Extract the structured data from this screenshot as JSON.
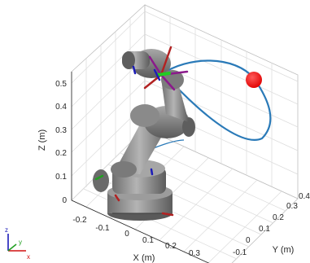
{
  "figure": {
    "axis_labels": {
      "x": "X (m)",
      "y": "Y (m)",
      "z": "Z (m)"
    },
    "z_ticks": [
      "0",
      "0.1",
      "0.2",
      "0.3",
      "0.4",
      "0.5"
    ],
    "x_ticks": [
      "-0.2",
      "-0.1",
      "0",
      "0.1",
      "0.2",
      "0.3"
    ],
    "y_ticks": [
      "-0.1",
      "0",
      "0.1",
      "0.2",
      "0.3",
      "0.4"
    ],
    "triad": {
      "x": "x",
      "y": "y",
      "z": "z"
    },
    "colors": {
      "trajectory": "#2a7ab8",
      "target": "#ff0000",
      "robot_body": "#8c8c8c",
      "robot_dark": "#4a4a4a",
      "frame_x": "#b22222",
      "frame_y": "#22a022",
      "frame_z": "#1c1cb8",
      "frame_tool": "#8b1a8b",
      "grid": "#dcdcdc"
    },
    "icons": [
      "robot-arm-icon",
      "target-sphere-icon",
      "axes-triad-icon"
    ]
  }
}
